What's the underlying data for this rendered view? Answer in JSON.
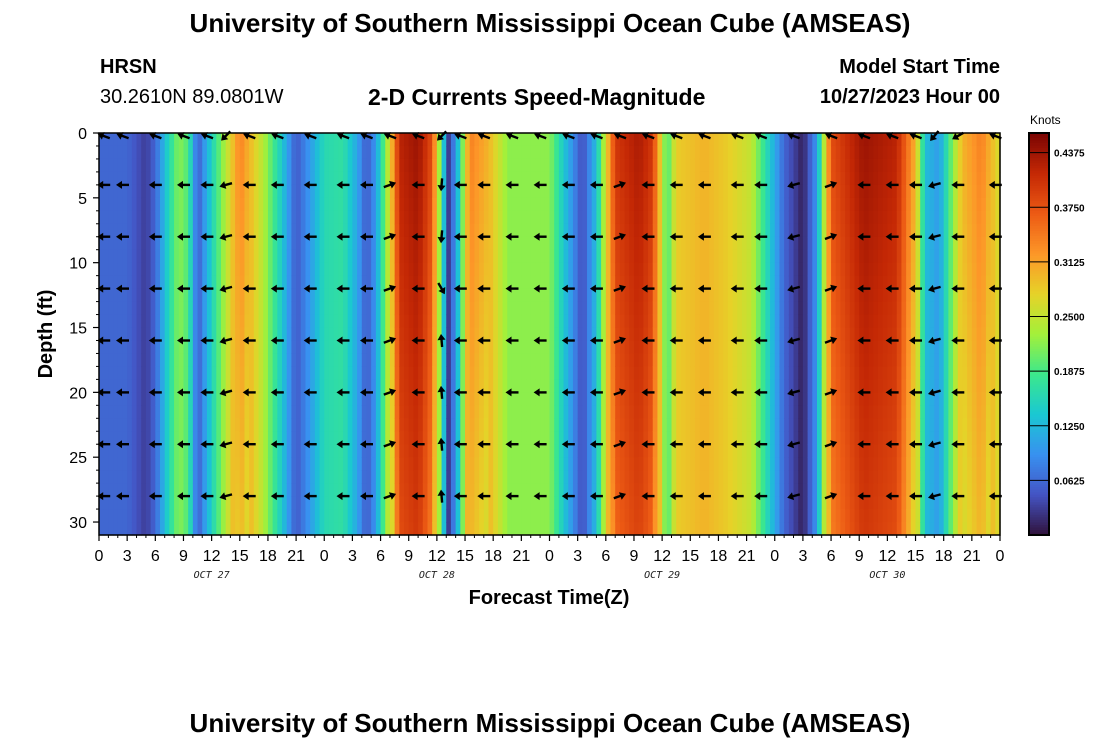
{
  "page": {
    "title": "University of Southern Mississippi Ocean Cube (AMSEAS)",
    "footer_title": "University of Southern Mississippi Ocean Cube (AMSEAS)"
  },
  "station": {
    "name": "HRSN",
    "coords": "30.2610N  89.0801W"
  },
  "plot_title": "2-D Currents Speed-Magnitude",
  "model_start": {
    "label": "Model Start Time",
    "value": "10/27/2023 Hour 00"
  },
  "chart_data": {
    "type": "heatmap",
    "title": "2-D Currents Speed-Magnitude",
    "xlabel": "Forecast Time(Z)",
    "ylabel": "Depth (ft)",
    "x_range_hours": [
      0,
      96
    ],
    "y_range_ft": [
      0,
      31
    ],
    "y_ticks": [
      "0",
      "5",
      "10",
      "15",
      "20",
      "25",
      "30"
    ],
    "y_tick_values": [
      0,
      5,
      10,
      15,
      20,
      25,
      30
    ],
    "x_ticks": [
      "0",
      "3",
      "6",
      "9",
      "12",
      "15",
      "18",
      "21",
      "0",
      "3",
      "6",
      "9",
      "12",
      "15",
      "18",
      "21",
      "0",
      "3",
      "6",
      "9",
      "12",
      "15",
      "18",
      "21",
      "0",
      "3",
      "6",
      "9",
      "12",
      "15",
      "18",
      "21",
      "0"
    ],
    "date_labels": [
      {
        "text": "OCT 27",
        "hour": 12
      },
      {
        "text": "OCT 28",
        "hour": 36
      },
      {
        "text": "OCT 29",
        "hour": 60
      },
      {
        "text": "OCT 30",
        "hour": 84
      }
    ],
    "colorbar": {
      "unit": "Knots",
      "ticks": [
        "0.4375",
        "0.3750",
        "0.3125",
        "0.2500",
        "0.1875",
        "0.1250",
        "0.0625"
      ],
      "tick_values": [
        0.4375,
        0.375,
        0.3125,
        0.25,
        0.1875,
        0.125,
        0.0625
      ],
      "min": 0,
      "max": 0.46
    },
    "speed_keyframes": [
      {
        "h": 0,
        "s": 0.06
      },
      {
        "h": 3,
        "s": 0.06
      },
      {
        "h": 5,
        "s": 0.03
      },
      {
        "h": 6,
        "s": 0.06
      },
      {
        "h": 7.5,
        "s": 0.16
      },
      {
        "h": 8.5,
        "s": 0.22
      },
      {
        "h": 9.5,
        "s": 0.19
      },
      {
        "h": 10.5,
        "s": 0.05
      },
      {
        "h": 12,
        "s": 0.15
      },
      {
        "h": 13.5,
        "s": 0.24
      },
      {
        "h": 15,
        "s": 0.34
      },
      {
        "h": 17.5,
        "s": 0.24
      },
      {
        "h": 19.5,
        "s": 0.14
      },
      {
        "h": 21,
        "s": 0.05
      },
      {
        "h": 22.5,
        "s": 0.1
      },
      {
        "h": 24,
        "s": 0.16
      },
      {
        "h": 26,
        "s": 0.17
      },
      {
        "h": 27.5,
        "s": 0.11
      },
      {
        "h": 28.5,
        "s": 0.05
      },
      {
        "h": 29.5,
        "s": 0.1
      },
      {
        "h": 31,
        "s": 0.27
      },
      {
        "h": 32,
        "s": 0.42
      },
      {
        "h": 34,
        "s": 0.44
      },
      {
        "h": 35.5,
        "s": 0.38
      },
      {
        "h": 36.5,
        "s": 0.18
      },
      {
        "h": 37.3,
        "s": 0.02
      },
      {
        "h": 38.3,
        "s": 0.14
      },
      {
        "h": 39.5,
        "s": 0.34
      },
      {
        "h": 41.5,
        "s": 0.3
      },
      {
        "h": 43.5,
        "s": 0.22
      },
      {
        "h": 46,
        "s": 0.22
      },
      {
        "h": 48,
        "s": 0.22
      },
      {
        "h": 49.5,
        "s": 0.14
      },
      {
        "h": 51.5,
        "s": 0.04
      },
      {
        "h": 53,
        "s": 0.13
      },
      {
        "h": 55,
        "s": 0.4
      },
      {
        "h": 57.5,
        "s": 0.43
      },
      {
        "h": 59,
        "s": 0.4
      },
      {
        "h": 60.5,
        "s": 0.18
      },
      {
        "h": 61.5,
        "s": 0.28
      },
      {
        "h": 64.5,
        "s": 0.3
      },
      {
        "h": 67,
        "s": 0.28
      },
      {
        "h": 69.5,
        "s": 0.25
      },
      {
        "h": 71.5,
        "s": 0.14
      },
      {
        "h": 73,
        "s": 0.06
      },
      {
        "h": 75,
        "s": 0.01
      },
      {
        "h": 76.5,
        "s": 0.1
      },
      {
        "h": 78,
        "s": 0.38
      },
      {
        "h": 81.5,
        "s": 0.44
      },
      {
        "h": 85,
        "s": 0.42
      },
      {
        "h": 87,
        "s": 0.3
      },
      {
        "h": 88,
        "s": 0.13
      },
      {
        "h": 89.5,
        "s": 0.1
      },
      {
        "h": 90.5,
        "s": 0.18
      },
      {
        "h": 92,
        "s": 0.3
      },
      {
        "h": 94,
        "s": 0.34
      },
      {
        "h": 95,
        "s": 0.3
      },
      {
        "h": 96,
        "s": 0.26
      }
    ],
    "arrow_depths_ft": [
      0,
      4,
      8,
      12,
      16,
      20,
      24,
      28
    ],
    "arrow_hours": [
      0.5,
      2.5,
      6,
      9,
      11.5,
      13.5,
      16,
      19,
      22.5,
      26,
      28.5,
      31,
      34,
      36.5,
      38.5,
      41,
      44,
      47,
      50,
      53,
      55.5,
      58.5,
      61.5,
      64.5,
      68,
      70.5,
      74,
      78,
      81.5,
      84.5,
      87,
      89,
      91.5,
      95.5
    ],
    "arrow_direction_default": "west",
    "arrow_direction_notes": "near-surface arrows at hours ~12, 36.5, 65, 89 point south-west/south; east-pointing arrows near hours 31, 55, 78"
  }
}
